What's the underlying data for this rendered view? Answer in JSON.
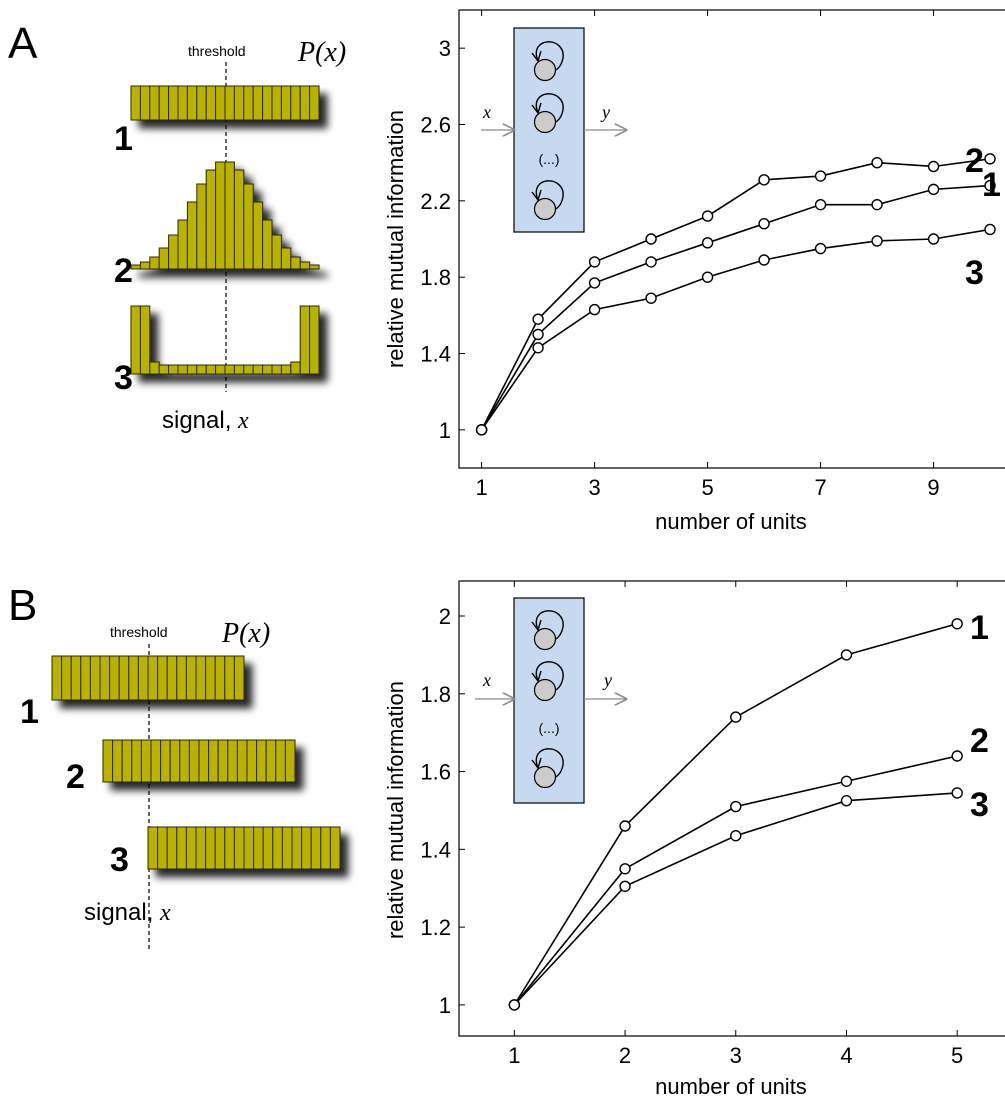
{
  "panels": [
    {
      "panel_label": "A",
      "threshold_label": "threshold",
      "px_label": "P(x)",
      "signal_label_text": "signal, ",
      "signal_label_var": "x",
      "distributions": [
        {
          "label": "1",
          "kind": "uniform"
        },
        {
          "label": "2",
          "kind": "gaussian"
        },
        {
          "label": "3",
          "kind": "bimodal"
        }
      ],
      "inset": {
        "input_label": "x",
        "output_label": "y",
        "ellipsis": "(...)"
      },
      "chart_data": {
        "type": "line",
        "xlabel": "number of units",
        "ylabel": "relative mutual information",
        "xlim": [
          0.6,
          10.3
        ],
        "ylim": [
          0.8,
          3.2
        ],
        "xticks": [
          1,
          3,
          5,
          7,
          9
        ],
        "yticks": [
          1,
          1.4,
          1.8,
          2.2,
          2.6,
          3
        ],
        "ytick_labels": [
          "1",
          "1.4",
          "1.8",
          "2.2",
          "2.6",
          "3"
        ],
        "series": [
          {
            "label": "2",
            "x": [
              1,
              2,
              3,
              4,
              5,
              6,
              7,
              8,
              9,
              10
            ],
            "values": [
              1.0,
              1.58,
              1.88,
              2.0,
              2.12,
              2.31,
              2.33,
              2.4,
              2.38,
              2.42
            ]
          },
          {
            "label": "1",
            "x": [
              1,
              2,
              3,
              4,
              5,
              6,
              7,
              8,
              9,
              10
            ],
            "values": [
              1.0,
              1.5,
              1.77,
              1.88,
              1.98,
              2.08,
              2.18,
              2.18,
              2.26,
              2.28
            ]
          },
          {
            "label": "3",
            "x": [
              1,
              2,
              3,
              4,
              5,
              6,
              7,
              8,
              9,
              10
            ],
            "values": [
              1.0,
              1.43,
              1.63,
              1.69,
              1.8,
              1.89,
              1.95,
              1.99,
              2.0,
              2.05
            ]
          }
        ],
        "grid": false
      }
    },
    {
      "panel_label": "B",
      "threshold_label": "threshold",
      "px_label": "P(x)",
      "signal_label_text": "signal, ",
      "signal_label_var": "x",
      "distributions": [
        {
          "label": "1",
          "kind": "uniform-shift-left"
        },
        {
          "label": "2",
          "kind": "uniform-shift-mid"
        },
        {
          "label": "3",
          "kind": "uniform-shift-right"
        }
      ],
      "inset": {
        "input_label": "x",
        "output_label": "y",
        "ellipsis": "(...)"
      },
      "chart_data": {
        "type": "line",
        "xlabel": "number of units",
        "ylabel": "relative mutual information",
        "xlim": [
          0.5,
          5.45
        ],
        "ylim": [
          0.92,
          2.09
        ],
        "xticks": [
          1,
          2,
          3,
          4,
          5
        ],
        "yticks": [
          1,
          1.2,
          1.4,
          1.6,
          1.8,
          2
        ],
        "ytick_labels": [
          "1",
          "1.2",
          "1.4",
          "1.6",
          "1.8",
          "2"
        ],
        "series": [
          {
            "label": "1",
            "x": [
              1,
              2,
              3,
              4,
              5
            ],
            "values": [
              1.0,
              1.46,
              1.74,
              1.9,
              1.98
            ]
          },
          {
            "label": "2",
            "x": [
              1,
              2,
              3,
              4,
              5
            ],
            "values": [
              1.0,
              1.35,
              1.51,
              1.575,
              1.64
            ]
          },
          {
            "label": "3",
            "x": [
              1,
              2,
              3,
              4,
              5
            ],
            "values": [
              1.0,
              1.305,
              1.435,
              1.525,
              1.545
            ]
          }
        ],
        "grid": false
      }
    }
  ],
  "colors": {
    "bar_fill": "#b9b300",
    "bar_stroke": "#2e2a00",
    "inset_fill": "#c7d8f1",
    "node_fill": "#cccccc",
    "arrow_gray": "#8a8a8a"
  }
}
